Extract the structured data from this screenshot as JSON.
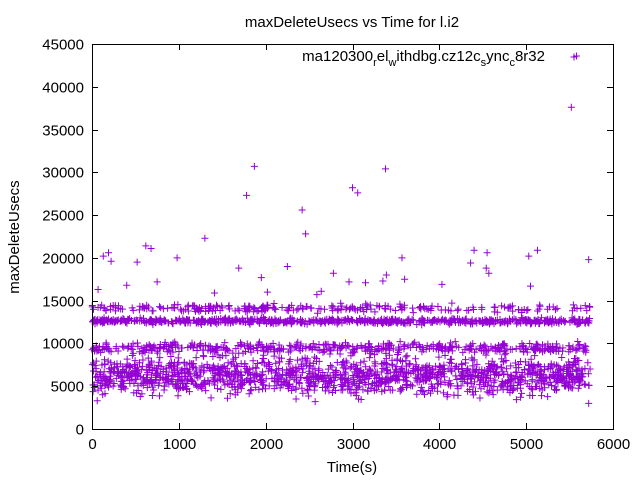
{
  "chart_data": {
    "type": "scatter",
    "title": "maxDeleteUsecs vs Time for l.i2",
    "xlabel": "Time(s)",
    "ylabel": "maxDeleteUsecs",
    "xlim": [
      0,
      6000
    ],
    "ylim": [
      0,
      45000
    ],
    "x_ticks": [
      "0",
      "1000",
      "2000",
      "3000",
      "4000",
      "5000",
      "6000"
    ],
    "y_ticks": [
      "0",
      "5000",
      "10000",
      "15000",
      "20000",
      "25000",
      "30000",
      "35000",
      "40000",
      "45000"
    ],
    "grid": false,
    "legend_position": "top-right",
    "legend": {
      "parts": [
        {
          "text": "ma120300",
          "sub": false
        },
        {
          "text": "r",
          "sub": true
        },
        {
          "text": "el",
          "sub": false
        },
        {
          "text": "w",
          "sub": true
        },
        {
          "text": "ithdbg.cz12c",
          "sub": false
        },
        {
          "text": "s",
          "sub": true
        },
        {
          "text": "ync",
          "sub": false
        },
        {
          "text": "c",
          "sub": true
        },
        {
          "text": "8r32",
          "sub": false
        }
      ]
    },
    "marker": "+",
    "color": "#9400d3",
    "bands": [
      {
        "x_start": 0,
        "x_end": 5740,
        "y_center": 6200,
        "y_spread": 3200,
        "count": 1400
      },
      {
        "x_start": 0,
        "x_end": 5740,
        "y_center": 9500,
        "y_spread": 900,
        "count": 450
      },
      {
        "x_start": 0,
        "x_end": 5740,
        "y_center": 12600,
        "y_spread": 500,
        "count": 650
      },
      {
        "x_start": 0,
        "x_end": 5740,
        "y_center": 14100,
        "y_spread": 700,
        "count": 250
      }
    ],
    "outliers": [
      {
        "x": 5580,
        "y": 43600
      },
      {
        "x": 5520,
        "y": 37600
      },
      {
        "x": 1870,
        "y": 30700
      },
      {
        "x": 3380,
        "y": 30400
      },
      {
        "x": 3000,
        "y": 28200
      },
      {
        "x": 3060,
        "y": 27600
      },
      {
        "x": 1780,
        "y": 27300
      },
      {
        "x": 2420,
        "y": 25600
      },
      {
        "x": 2460,
        "y": 22800
      },
      {
        "x": 1300,
        "y": 22300
      },
      {
        "x": 620,
        "y": 21400
      },
      {
        "x": 680,
        "y": 21100
      },
      {
        "x": 190,
        "y": 20600
      },
      {
        "x": 130,
        "y": 20200
      },
      {
        "x": 220,
        "y": 19600
      },
      {
        "x": 980,
        "y": 20000
      },
      {
        "x": 5130,
        "y": 20900
      },
      {
        "x": 4400,
        "y": 20900
      },
      {
        "x": 4550,
        "y": 20600
      },
      {
        "x": 5030,
        "y": 20200
      },
      {
        "x": 3570,
        "y": 20000
      },
      {
        "x": 5720,
        "y": 19800
      },
      {
        "x": 4360,
        "y": 19400
      },
      {
        "x": 2250,
        "y": 19000
      },
      {
        "x": 4540,
        "y": 18800
      },
      {
        "x": 1690,
        "y": 18800
      },
      {
        "x": 4570,
        "y": 18200
      },
      {
        "x": 2780,
        "y": 18200
      },
      {
        "x": 3390,
        "y": 18000
      },
      {
        "x": 520,
        "y": 19500
      },
      {
        "x": 1950,
        "y": 17700
      },
      {
        "x": 3600,
        "y": 17500
      },
      {
        "x": 750,
        "y": 17200
      },
      {
        "x": 2960,
        "y": 17200
      },
      {
        "x": 3150,
        "y": 17100
      },
      {
        "x": 3350,
        "y": 17300
      },
      {
        "x": 4030,
        "y": 16900
      },
      {
        "x": 5050,
        "y": 16700
      },
      {
        "x": 400,
        "y": 16800
      },
      {
        "x": 70,
        "y": 16300
      },
      {
        "x": 2640,
        "y": 16100
      },
      {
        "x": 1410,
        "y": 15900
      },
      {
        "x": 2020,
        "y": 16000
      },
      {
        "x": 2590,
        "y": 15700
      },
      {
        "x": 5720,
        "y": 3000
      },
      {
        "x": 2570,
        "y": 3200
      },
      {
        "x": 60,
        "y": 3300
      },
      {
        "x": 2350,
        "y": 3500
      },
      {
        "x": 1560,
        "y": 3600
      }
    ]
  }
}
